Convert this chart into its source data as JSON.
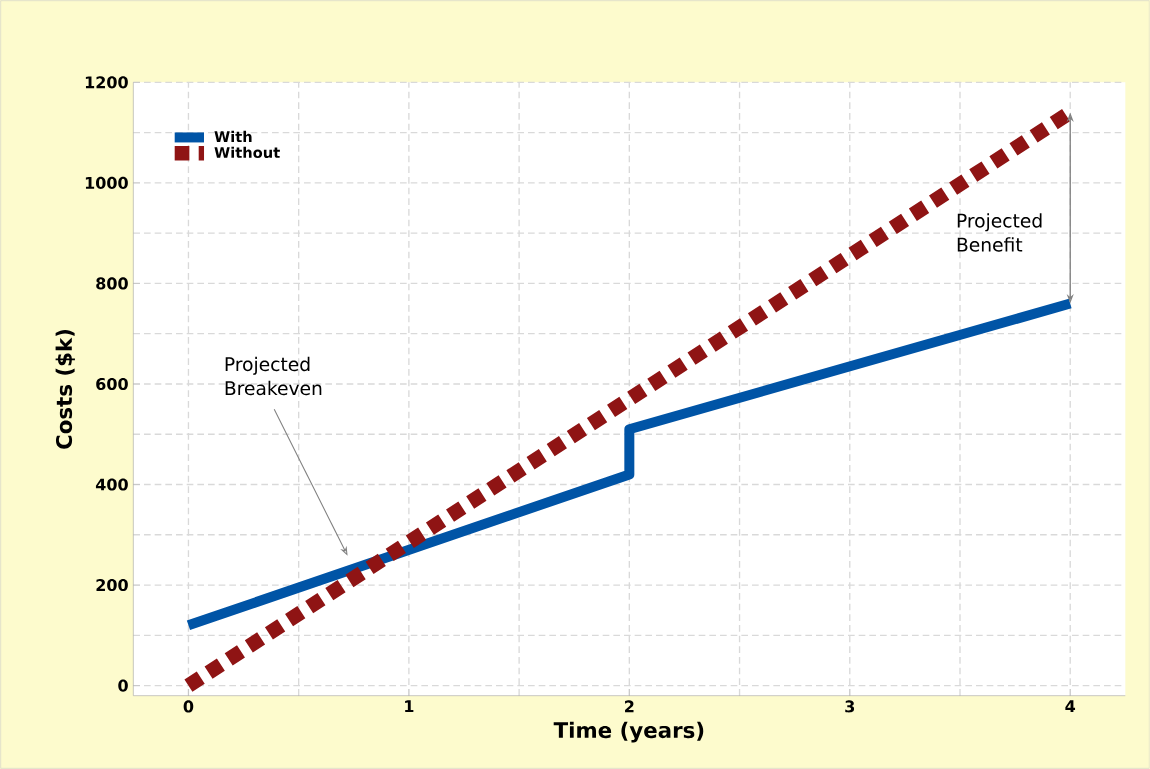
{
  "chart_data": {
    "type": "line",
    "xlabel": "Time (years)",
    "ylabel": "Costs ($k)",
    "xlim": [
      -0.25,
      4.25
    ],
    "ylim": [
      -20,
      1200
    ],
    "xticks": [
      0,
      1,
      2,
      3,
      4
    ],
    "yticks": [
      0,
      200,
      400,
      600,
      800,
      1000,
      1200
    ],
    "grid": true,
    "legend": "top left",
    "marker": "none",
    "series": [
      {
        "name": "With",
        "color": "#0054a6",
        "line_style": "solid",
        "x": [
          0,
          2,
          2,
          4
        ],
        "values": [
          120,
          420,
          510,
          760
        ]
      },
      {
        "name": "Without",
        "color": "#8f1414",
        "line_style": "dashed",
        "x": [
          0,
          4
        ],
        "values": [
          0,
          1140
        ]
      }
    ],
    "annotations": [
      "Projected Breakeven",
      "Projected Benefit"
    ]
  }
}
